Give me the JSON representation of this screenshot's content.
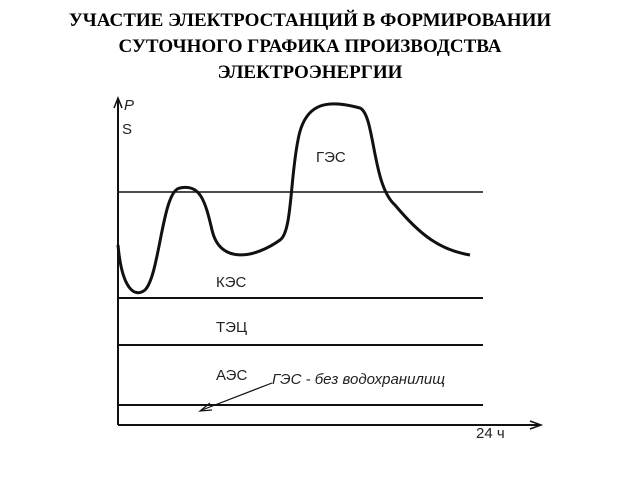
{
  "header": {
    "title_lines": [
      "УЧАСТИЕ ЭЛЕКТРОСТАНЦИЙ В ФОРМИРОВАНИИ",
      "СУТОЧНОГО ГРАФИКА ПРОИЗВОДСТВА",
      "ЭЛЕКТРОЭНЕРГИИ"
    ]
  },
  "diagram": {
    "y_axis_labels": [
      "P",
      "S"
    ],
    "x_axis_label": "24 ч",
    "regions": [
      "ГЭС",
      "КЭС",
      "ТЭЦ",
      "АЭС"
    ],
    "annotation": "ГЭС - без водохранилищ"
  }
}
